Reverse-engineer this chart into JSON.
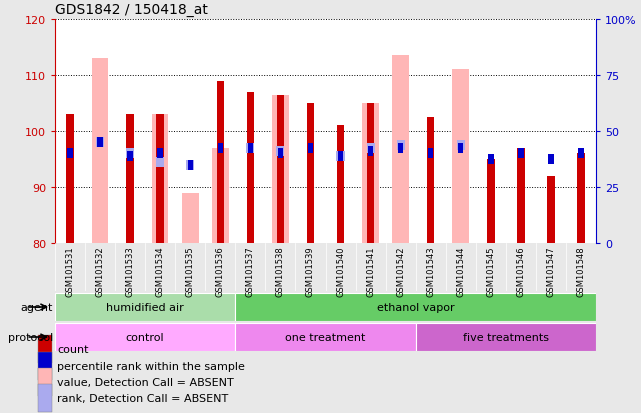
{
  "title": "GDS1842 / 150418_at",
  "samples": [
    "GSM101531",
    "GSM101532",
    "GSM101533",
    "GSM101534",
    "GSM101535",
    "GSM101536",
    "GSM101537",
    "GSM101538",
    "GSM101539",
    "GSM101540",
    "GSM101541",
    "GSM101542",
    "GSM101543",
    "GSM101544",
    "GSM101545",
    "GSM101546",
    "GSM101547",
    "GSM101548"
  ],
  "count_top": [
    103,
    80,
    103,
    103,
    80,
    109,
    107,
    106.5,
    105,
    101,
    105,
    80,
    102.5,
    80,
    95,
    97,
    92,
    96
  ],
  "absent_value_top": [
    80,
    113,
    80,
    103,
    89,
    97,
    80,
    106.5,
    80,
    80,
    105,
    113.5,
    80,
    111,
    80,
    80,
    80,
    80
  ],
  "percentile_rank": [
    96,
    98,
    95.5,
    96,
    94,
    97,
    97,
    96,
    97,
    95.5,
    96.5,
    97,
    96,
    97,
    95,
    96,
    95,
    96
  ],
  "absent_rank_value": [
    0,
    98,
    96,
    94.5,
    94,
    0,
    97,
    96.5,
    0,
    95.5,
    97,
    97.5,
    0,
    97.5,
    0,
    0,
    0,
    0
  ],
  "has_count": [
    true,
    false,
    true,
    true,
    false,
    true,
    true,
    true,
    true,
    true,
    true,
    false,
    true,
    false,
    true,
    true,
    true,
    true
  ],
  "has_absent_value": [
    false,
    true,
    false,
    true,
    true,
    true,
    false,
    true,
    false,
    false,
    true,
    true,
    false,
    true,
    false,
    false,
    false,
    false
  ],
  "has_absent_rank": [
    false,
    true,
    true,
    true,
    true,
    false,
    true,
    true,
    false,
    true,
    true,
    true,
    false,
    true,
    false,
    false,
    false,
    false
  ],
  "count_color": "#cc0000",
  "absent_value_color": "#ffb6b6",
  "percentile_rank_color": "#0000cc",
  "absent_rank_color": "#aaaaee",
  "ylim_left": [
    80,
    120
  ],
  "ylim_right": [
    0,
    100
  ],
  "yticks_left": [
    80,
    90,
    100,
    110,
    120
  ],
  "yticks_right": [
    0,
    25,
    50,
    75,
    100
  ],
  "ytick_labels_right": [
    "0",
    "25",
    "50",
    "75",
    "100%"
  ],
  "background_color": "#e8e8e8",
  "plot_bg_color": "#ffffff",
  "left_axis_color": "#cc0000",
  "right_axis_color": "#0000cc",
  "agent_humidified_color": "#aaddaa",
  "agent_ethanol_color": "#66cc66",
  "protocol_control_color": "#ffaaff",
  "protocol_one_color": "#ee88ee",
  "protocol_five_color": "#cc66cc",
  "legend_items": [
    {
      "label": "count",
      "color": "#cc0000"
    },
    {
      "label": "percentile rank within the sample",
      "color": "#0000cc"
    },
    {
      "label": "value, Detection Call = ABSENT",
      "color": "#ffb6b6"
    },
    {
      "label": "rank, Detection Call = ABSENT",
      "color": "#aaaaee"
    }
  ]
}
